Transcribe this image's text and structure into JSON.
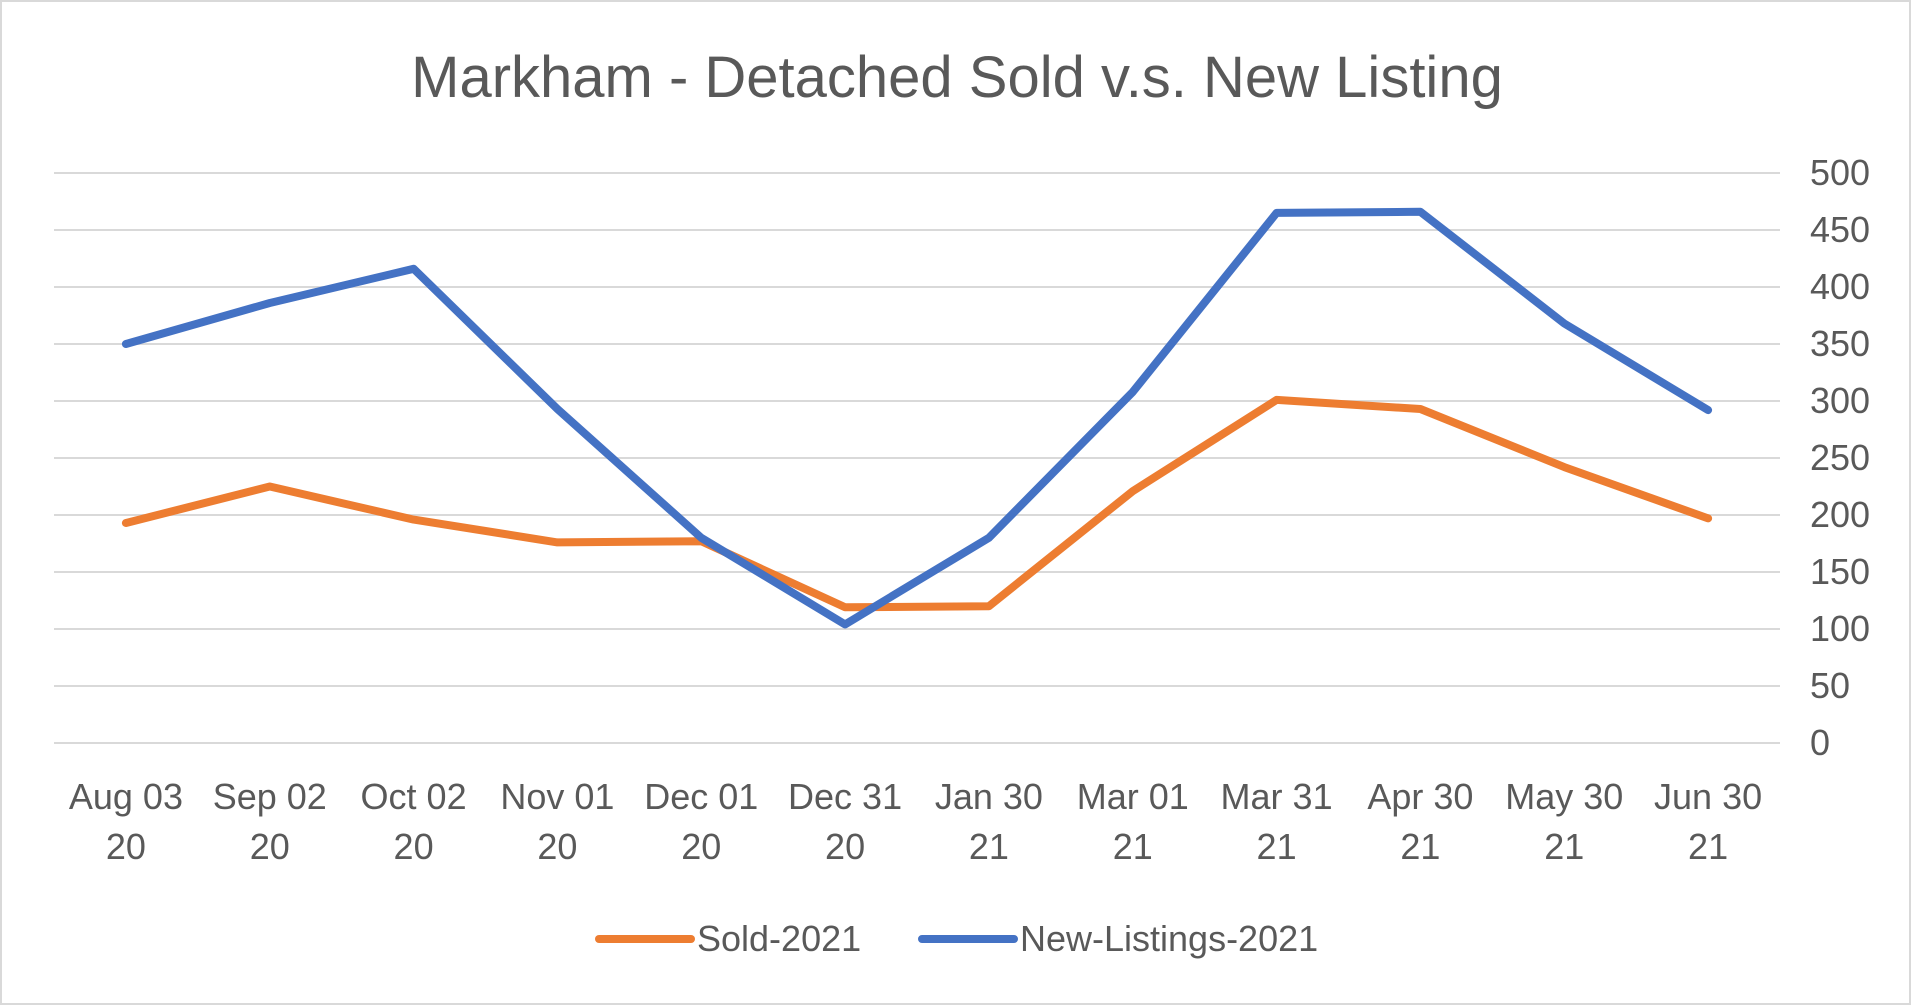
{
  "chart_data": {
    "type": "line",
    "title": "Markham - Detached Sold v.s. New Listing",
    "categories": [
      [
        "Aug 03",
        "20"
      ],
      [
        "Sep 02",
        "20"
      ],
      [
        "Oct 02",
        "20"
      ],
      [
        "Nov 01",
        "20"
      ],
      [
        "Dec 01",
        "20"
      ],
      [
        "Dec 31",
        "20"
      ],
      [
        "Jan 30",
        "21"
      ],
      [
        "Mar 01",
        "21"
      ],
      [
        "Mar 31",
        "21"
      ],
      [
        "Apr 30",
        "21"
      ],
      [
        "May 30",
        "21"
      ],
      [
        "Jun 30",
        "21"
      ]
    ],
    "series": [
      {
        "name": "Sold-2021",
        "color": "#ed7d31",
        "values": [
          193,
          225,
          196,
          176,
          177,
          119,
          120,
          221,
          301,
          293,
          242,
          197
        ]
      },
      {
        "name": "New-Listings-2021",
        "color": "#4472c4",
        "values": [
          350,
          386,
          416,
          293,
          180,
          104,
          180,
          308,
          465,
          466,
          368,
          292
        ]
      }
    ],
    "y_axis": {
      "position": "right",
      "min": 0,
      "max": 500,
      "ticks": [
        0,
        50,
        100,
        150,
        200,
        250,
        300,
        350,
        400,
        450,
        500
      ]
    },
    "grid": true,
    "legend_position": "bottom-center"
  }
}
